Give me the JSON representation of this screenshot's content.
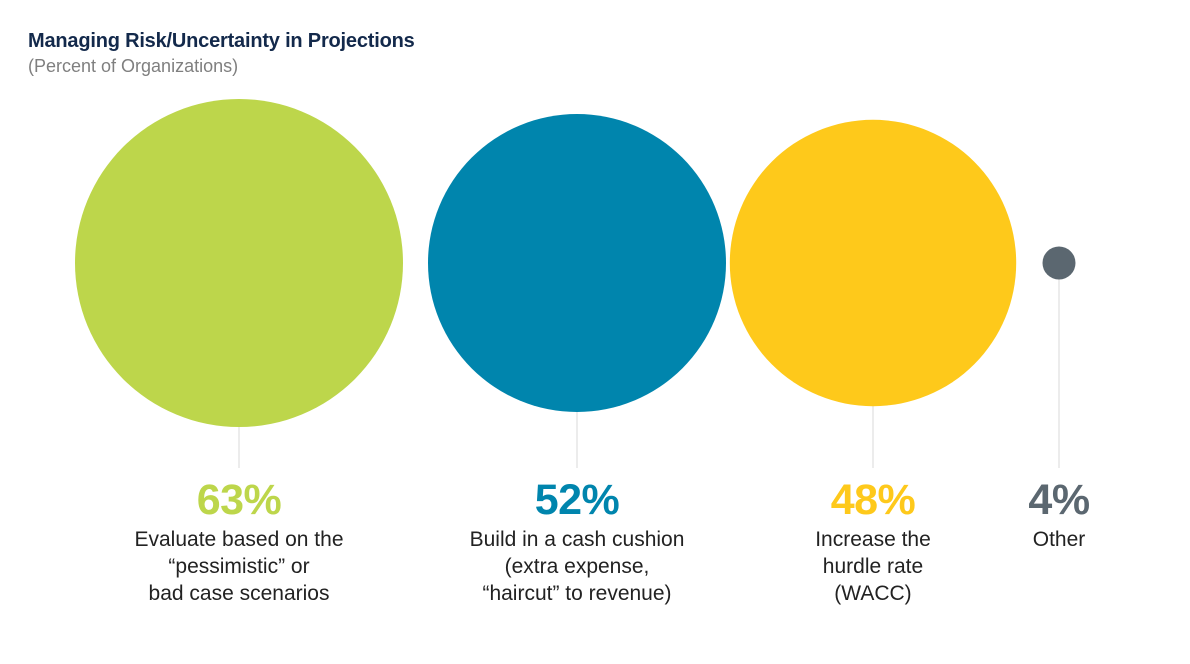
{
  "chart_data": {
    "type": "bubble",
    "title": "Managing Risk/Uncertainty in Projections",
    "subtitle": "(Percent of Organizations)",
    "unit": "%",
    "items": [
      {
        "value": 63,
        "label": "63%",
        "description": [
          "Evaluate based on the",
          "“pessimistic” or",
          "bad case scenarios"
        ],
        "color": "#bdd64b"
      },
      {
        "value": 52,
        "label": "52%",
        "description": [
          "Build in a cash cushion",
          "(extra expense,",
          "“haircut” to revenue)"
        ],
        "color": "#0085ad"
      },
      {
        "value": 48,
        "label": "48%",
        "description": [
          "Increase the",
          "hurdle rate",
          "(WACC)"
        ],
        "color": "#fec91b"
      },
      {
        "value": 4,
        "label": "4%",
        "description": [
          "Other"
        ],
        "color": "#5b6770"
      }
    ],
    "connector_color": "#d9d9d9",
    "legend": "none",
    "grid": false
  }
}
